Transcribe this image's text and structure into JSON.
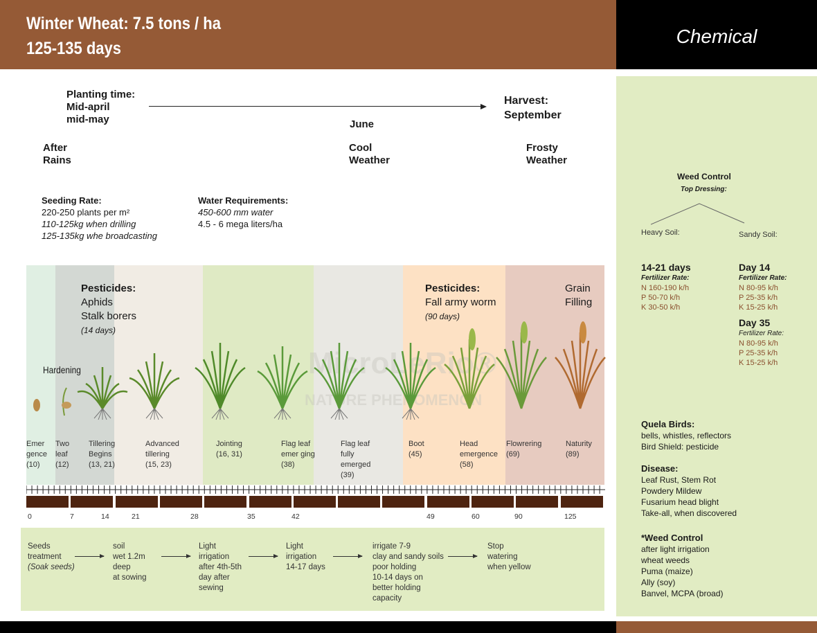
{
  "header": {
    "title_line1": "Winter Wheat: 7.5 tons / ha",
    "title_line2": "125-135 days",
    "panel_title": "Chemical"
  },
  "timeline": {
    "planting_label": "Planting time:",
    "planting_line2": "Mid-april",
    "planting_line3": "mid-may",
    "harvest_label": "Harvest:",
    "harvest_value": "September",
    "june": "June",
    "conditions": [
      {
        "l1": "After",
        "l2": "Rains"
      },
      {
        "l1": "Cool",
        "l2": "Weather"
      },
      {
        "l1": "Frosty",
        "l2": "Weather"
      }
    ]
  },
  "seeding": {
    "title": "Seeding Rate:",
    "line1": "220-250 plants per m²",
    "line2": "110-125kg when drilling",
    "line3": "125-135kg whe broadcasting"
  },
  "water": {
    "title": "Water Requirements:",
    "line1": "450-600 mm water",
    "line2": "4.5 - 6 mega liters/ha"
  },
  "pesticides1": {
    "title": "Pesticides:",
    "l1": "Aphids",
    "l2": "Stalk borers",
    "l3": "(14 days)"
  },
  "pesticides2": {
    "title": "Pesticides:",
    "l1": "Fall army worm",
    "l2": "(90 days)"
  },
  "grain": {
    "l1": "Grain",
    "l2": "Filling"
  },
  "hardening": "Hardening",
  "watermark": {
    "l1": "MicroLeRio®",
    "l2": "NATURE PHENOMENON"
  },
  "stages": [
    "Emer\ngence\n(10)",
    "Two\nleaf\n(12)",
    "Tillering\nBegins\n(13, 21)",
    "Advanced\ntillering\n(15, 23)",
    "Jointing\n(16, 31)",
    "Flag leaf\nemer ging\n(38)",
    "Flag leaf\nfully\nemerged\n(39)",
    "Boot\n(45)",
    "Head\nemergence\n(58)",
    "Flowrering\n(69)",
    "Naturity\n(89)"
  ],
  "days": [
    "0",
    "7",
    "14",
    "21",
    "28",
    "35",
    "42",
    "49",
    "60",
    "90",
    "125"
  ],
  "steps": [
    "Seeds\ntreatment",
    "soil\nwet 1.2m\ndeep\nat sowing",
    "Light\nirrigation\nafter 4th-5th\nday after\nsewing",
    "Light\nirrigation\n14-17 days",
    "irrigate 7-9\nclay and sandy soils\npoor holding\n10-14 days on\nbetter holding\ncapacity",
    "Stop\nwatering\nwhen yellow"
  ],
  "step1_note": "(Soak seeds)",
  "right": {
    "weed_title": "Weed Control",
    "top_dressing": "Top Dressing:",
    "heavy": "Heavy Soil:",
    "sandy": "Sandy Soil:",
    "heavy_days": "14-21 days",
    "fert_label": "Fertilizer Rate:",
    "heavy_rates": [
      "N 160-190 k/h",
      "P  50-70 k/h",
      "K  30-50 k/h"
    ],
    "day14": "Day 14",
    "day14_rates": [
      "N 80-95 k/h",
      "P  25-35 k/h",
      "K  15-25 k/h"
    ],
    "day35": "Day 35",
    "day35_rates": [
      "N 80-95 k/h",
      "P  25-35 k/h",
      "K  15-25 k/h"
    ],
    "quela_title": "Quela Birds:",
    "quela": [
      "bells, whistles, reflectors",
      "Bird Shield: pesticide"
    ],
    "disease_title": "Disease:",
    "disease": [
      "Leaf Rust, Stem Rot",
      "Powdery Mildew",
      "Fusarium head blight",
      "Take-all, when discovered"
    ],
    "weed2_title": "*Weed Control",
    "weed2": [
      "after light irrigation",
      "wheat weeds",
      "Puma (maize)",
      "Ally (soy)",
      "Banvel, MCPA (broad)"
    ]
  },
  "colors": {
    "brown": "#955a36",
    "panel": "#e1ecc3",
    "bar": "#4e2410"
  }
}
